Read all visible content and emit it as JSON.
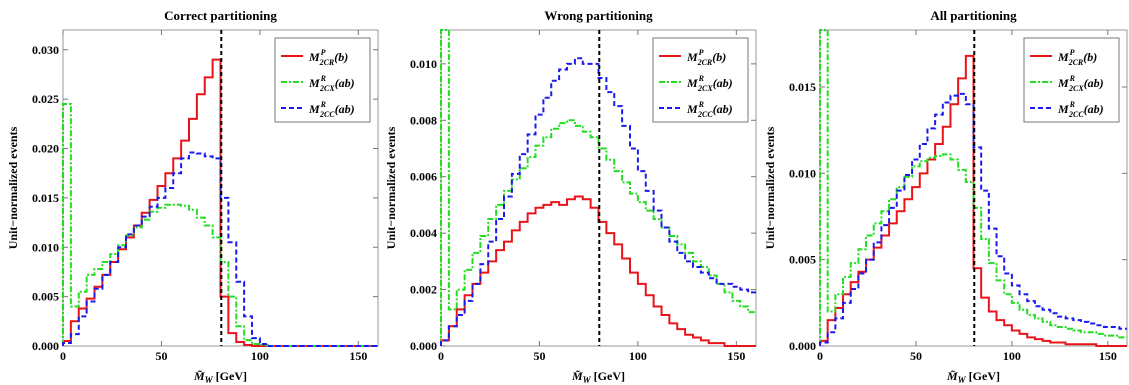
{
  "chart_data": [
    {
      "type": "line",
      "title": "Correct partitioning",
      "xlabel": "M̃_W [GeV]",
      "ylabel": "Unit−normalized events",
      "xlim": [
        0,
        160
      ],
      "ylim": [
        0,
        0.032
      ],
      "x_ticks": [
        0,
        50,
        100,
        150
      ],
      "y_ticks": [
        0.0,
        0.005,
        0.01,
        0.015,
        0.02,
        0.025,
        0.03
      ],
      "y_tick_labels": [
        "0.000",
        "0.005",
        "0.010",
        "0.015",
        "0.020",
        "0.025",
        "0.030"
      ],
      "vline_x": 80.4,
      "bin_width": 4,
      "bin_edges_start": 0,
      "legend_position": "top-right",
      "series": [
        {
          "name": "M2CR(b)",
          "color": "#e8141a",
          "dash": "solid",
          "values": [
            0.0005,
            0.0025,
            0.0038,
            0.0048,
            0.006,
            0.0072,
            0.0085,
            0.0098,
            0.011,
            0.0122,
            0.0135,
            0.0148,
            0.0162,
            0.0175,
            0.019,
            0.0208,
            0.023,
            0.0255,
            0.0272,
            0.029,
            0.005,
            0.0013,
            0.0004,
            0.0001,
            0,
            0,
            0,
            0,
            0,
            0,
            0,
            0,
            0,
            0,
            0,
            0,
            0,
            0,
            0,
            0
          ]
        },
        {
          "name": "M2CX(ab)",
          "color": "#22dd22",
          "dash": "dashdot",
          "values": [
            0.0245,
            0.004,
            0.0055,
            0.0072,
            0.0078,
            0.0085,
            0.0093,
            0.0102,
            0.0112,
            0.012,
            0.0128,
            0.0136,
            0.014,
            0.0143,
            0.0143,
            0.0142,
            0.0138,
            0.013,
            0.0122,
            0.011,
            0.0085,
            0.005,
            0.002,
            0.0006,
            0.0002,
            0.0001,
            0,
            0,
            0,
            0,
            0,
            0,
            0,
            0,
            0,
            0,
            0,
            0,
            0,
            0
          ]
        },
        {
          "name": "M2CC(ab)",
          "color": "#1a1aee",
          "dash": "dashed",
          "values": [
            0.0003,
            0.0012,
            0.003,
            0.0045,
            0.0058,
            0.0072,
            0.0085,
            0.01,
            0.0113,
            0.0122,
            0.0131,
            0.0141,
            0.015,
            0.016,
            0.0175,
            0.019,
            0.0196,
            0.0195,
            0.0192,
            0.019,
            0.015,
            0.0105,
            0.0065,
            0.003,
            0.0008,
            0.0002,
            0,
            0,
            0,
            0,
            0,
            0,
            0,
            0,
            0,
            0,
            0,
            0,
            0,
            0
          ]
        }
      ]
    },
    {
      "type": "line",
      "title": "Wrong partitioning",
      "xlabel": "M̃_W [GeV]",
      "ylabel": "Unit−normalized events",
      "xlim": [
        0,
        160
      ],
      "ylim": [
        0,
        0.0112
      ],
      "x_ticks": [
        0,
        50,
        100,
        150
      ],
      "y_ticks": [
        0.0,
        0.002,
        0.004,
        0.006,
        0.008,
        0.01
      ],
      "y_tick_labels": [
        "0.000",
        "0.002",
        "0.004",
        "0.006",
        "0.008",
        "0.010"
      ],
      "vline_x": 80.4,
      "bin_width": 4,
      "bin_edges_start": 0,
      "legend_position": "top-right",
      "series": [
        {
          "name": "M2CR(b)",
          "color": "#e8141a",
          "dash": "solid",
          "values": [
            0.0002,
            0.0007,
            0.0013,
            0.0018,
            0.0022,
            0.0026,
            0.003,
            0.0034,
            0.0037,
            0.0041,
            0.0044,
            0.0047,
            0.0049,
            0.005,
            0.0051,
            0.005,
            0.0052,
            0.0053,
            0.0052,
            0.0049,
            0.0044,
            0.004,
            0.0036,
            0.0031,
            0.0026,
            0.0022,
            0.0018,
            0.0014,
            0.0011,
            0.0008,
            0.0006,
            0.0004,
            0.0003,
            0.0002,
            0.0001,
            0.0001,
            0,
            0,
            0,
            0
          ]
        },
        {
          "name": "M2CX(ab)",
          "color": "#22dd22",
          "dash": "dashdot",
          "values": [
            0.0112,
            0.0013,
            0.002,
            0.0027,
            0.0033,
            0.0039,
            0.0045,
            0.005,
            0.0055,
            0.0059,
            0.0063,
            0.0067,
            0.0071,
            0.0074,
            0.0077,
            0.0079,
            0.008,
            0.0078,
            0.0076,
            0.0074,
            0.007,
            0.0066,
            0.0062,
            0.0058,
            0.0054,
            0.0051,
            0.0048,
            0.0045,
            0.0042,
            0.0039,
            0.0036,
            0.0033,
            0.003,
            0.0028,
            0.0025,
            0.0022,
            0.0019,
            0.0016,
            0.0014,
            0.0012
          ]
        },
        {
          "name": "M2CC(ab)",
          "color": "#1a1aee",
          "dash": "dashed",
          "values": [
            0.0002,
            0.0007,
            0.0011,
            0.0016,
            0.0022,
            0.0029,
            0.0037,
            0.0045,
            0.0053,
            0.0061,
            0.0068,
            0.0075,
            0.0082,
            0.0088,
            0.0094,
            0.0098,
            0.01,
            0.0102,
            0.01,
            0.01,
            0.0095,
            0.009,
            0.0085,
            0.0078,
            0.007,
            0.0062,
            0.0055,
            0.0048,
            0.0042,
            0.0037,
            0.0033,
            0.003,
            0.0028,
            0.0026,
            0.0024,
            0.0022,
            0.0022,
            0.0021,
            0.002,
            0.0019
          ]
        }
      ]
    },
    {
      "type": "line",
      "title": "All partitioning",
      "xlabel": "M̃_W [GeV]",
      "ylabel": "Unit−normalized events",
      "xlim": [
        0,
        160
      ],
      "ylim": [
        0,
        0.0183
      ],
      "x_ticks": [
        0,
        50,
        100,
        150
      ],
      "y_ticks": [
        0.0,
        0.005,
        0.01,
        0.015
      ],
      "y_tick_labels": [
        "0.000",
        "0.005",
        "0.010",
        "0.015"
      ],
      "vline_x": 80.4,
      "bin_width": 4,
      "bin_edges_start": 0,
      "legend_position": "top-right",
      "series": [
        {
          "name": "M2CR(b)",
          "color": "#e8141a",
          "dash": "solid",
          "values": [
            0.0003,
            0.0015,
            0.0022,
            0.003,
            0.0037,
            0.0043,
            0.005,
            0.0057,
            0.0064,
            0.0071,
            0.0078,
            0.0085,
            0.0092,
            0.01,
            0.0108,
            0.0117,
            0.0127,
            0.014,
            0.0155,
            0.0168,
            0.0045,
            0.0028,
            0.002,
            0.0015,
            0.0012,
            0.0009,
            0.0007,
            0.0005,
            0.0004,
            0.0003,
            0.0002,
            0.0002,
            0.0001,
            0.0001,
            0.0001,
            0.0001,
            0,
            0,
            0,
            0
          ]
        },
        {
          "name": "M2CX(ab)",
          "color": "#22dd22",
          "dash": "dashdot",
          "values": [
            0.0183,
            0.002,
            0.003,
            0.004,
            0.0048,
            0.0056,
            0.0064,
            0.0071,
            0.0078,
            0.0085,
            0.0092,
            0.0098,
            0.0104,
            0.0107,
            0.0109,
            0.011,
            0.0111,
            0.0108,
            0.0102,
            0.0095,
            0.008,
            0.0062,
            0.0048,
            0.0038,
            0.003,
            0.0025,
            0.0021,
            0.0018,
            0.0016,
            0.0014,
            0.0012,
            0.0011,
            0.001,
            0.0009,
            0.0008,
            0.0008,
            0.0007,
            0.0006,
            0.0006,
            0.0005
          ]
        },
        {
          "name": "M2CC(ab)",
          "color": "#1a1aee",
          "dash": "dashed",
          "values": [
            0.0002,
            0.0008,
            0.0016,
            0.0025,
            0.0033,
            0.0042,
            0.005,
            0.006,
            0.007,
            0.008,
            0.009,
            0.0099,
            0.0108,
            0.0117,
            0.0126,
            0.0134,
            0.0141,
            0.0145,
            0.0146,
            0.014,
            0.0115,
            0.009,
            0.0068,
            0.0052,
            0.0042,
            0.0035,
            0.003,
            0.0026,
            0.0023,
            0.0021,
            0.0019,
            0.0017,
            0.0016,
            0.0015,
            0.0014,
            0.0013,
            0.0012,
            0.0011,
            0.0011,
            0.001
          ]
        }
      ]
    }
  ]
}
